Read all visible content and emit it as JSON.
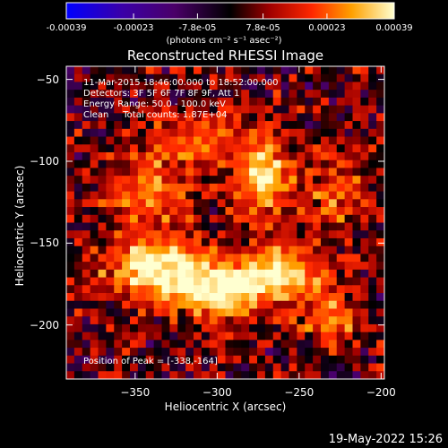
{
  "chart_data": {
    "type": "heatmap",
    "title": "Reconstructed RHESSI Image",
    "xlabel": "Heliocentric X (arcsec)",
    "ylabel": "Heliocentric Y (arcsec)",
    "xlim": [
      -392,
      -198
    ],
    "ylim": [
      -233,
      -42
    ],
    "xticks": [
      -350,
      -300,
      -250,
      -200
    ],
    "yticks": [
      -50,
      -100,
      -150,
      -200
    ],
    "colorbar": {
      "ticks": [
        "-0.00039",
        "-0.00023",
        "-7.8e-05",
        "7.8e-05",
        "0.00023",
        "0.00039"
      ],
      "tick_values": [
        -0.00039,
        -0.00023,
        -7.8e-05,
        7.8e-05,
        0.00023,
        0.00039
      ],
      "range": [
        -0.00039,
        0.00039
      ],
      "units": "(photons cm⁻² s⁻¹ asec⁻²)"
    },
    "annotations": [
      "11-Mar-2015 18:46:00.000 to 18:52:00.000",
      "Detectors: 3F 5F 6F 7F 8F 9F, Att 1",
      "Energy Range: 50.0 - 100.0 keV",
      "Clean     Total counts: 1.87E+04"
    ],
    "peak_label": "Position of Peak = [-338,-164]",
    "peak_position": [
      -338,
      -164
    ],
    "emission_sources": [
      {
        "x": -338,
        "y": -164,
        "sx": 22,
        "sy": 14,
        "amp": 1.0
      },
      {
        "x": -300,
        "y": -180,
        "sx": 20,
        "sy": 12,
        "amp": 0.9
      },
      {
        "x": -262,
        "y": -168,
        "sx": 18,
        "sy": 12,
        "amp": 0.85
      },
      {
        "x": -272,
        "y": -108,
        "sx": 12,
        "sy": 18,
        "amp": 0.85
      },
      {
        "x": -342,
        "y": -118,
        "sx": 18,
        "sy": 14,
        "amp": 0.6
      },
      {
        "x": -315,
        "y": -88,
        "sx": 22,
        "sy": 14,
        "amp": 0.5
      },
      {
        "x": -230,
        "y": -195,
        "sx": 14,
        "sy": 14,
        "amp": 0.55
      },
      {
        "x": -228,
        "y": -118,
        "sx": 16,
        "sy": 18,
        "amp": 0.5
      }
    ]
  },
  "timestamp": "19-May-2022 15:26"
}
